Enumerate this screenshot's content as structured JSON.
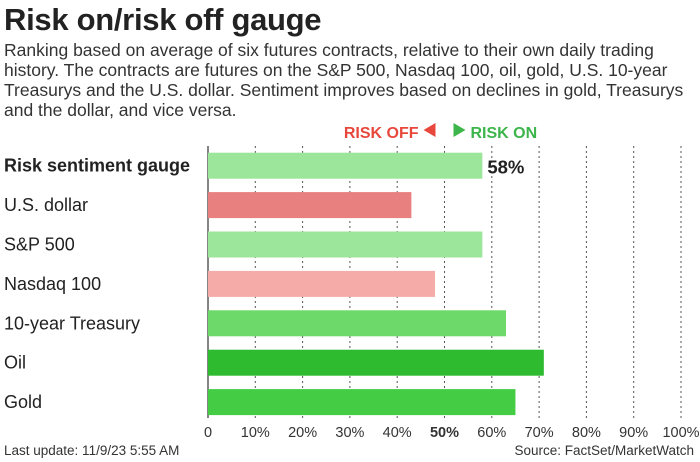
{
  "title": "Risk on/risk off gauge",
  "subtitle": "Ranking based on average of six futures contracts, relative to their own daily trading history. The contracts are futures on the S&P 500, Nasdaq 100, oil, gold, U.S. 10-year Treasurys and the U.S. dollar. Sentiment improves based on declines in gold, Treasurys and the dollar, and vice versa.",
  "legend": {
    "risk_off": "RISK OFF",
    "risk_on": "RISK ON",
    "risk_off_color": "#e8483c",
    "risk_on_color": "#3cb54a"
  },
  "footer": {
    "last_update": "Last update: 11/9/23 5:55 AM",
    "source": "Source: FactSet/MarketWatch"
  },
  "chart_data": {
    "type": "bar",
    "orientation": "horizontal",
    "categories": [
      "Risk sentiment gauge",
      "U.S. dollar",
      "S&P 500",
      "Nasdaq 100",
      "10-year Treasury",
      "Oil",
      "Gold"
    ],
    "values": [
      58,
      43,
      58,
      48,
      63,
      71,
      65
    ],
    "colors": [
      "#9be69a",
      "#e98080",
      "#9be69a",
      "#f5aca8",
      "#6cd96a",
      "#2fbb2f",
      "#45cc45"
    ],
    "data_labels": [
      "58%",
      "",
      "",
      "",
      "",
      "",
      ""
    ],
    "xlim": [
      0,
      100
    ],
    "xticks": [
      "0",
      "10%",
      "20%",
      "30%",
      "40%",
      "50%",
      "60%",
      "70%",
      "80%",
      "90%",
      "100%"
    ],
    "highlight_tick": "50%",
    "bold_category": "Risk sentiment gauge",
    "grid": "vertical dotted"
  }
}
